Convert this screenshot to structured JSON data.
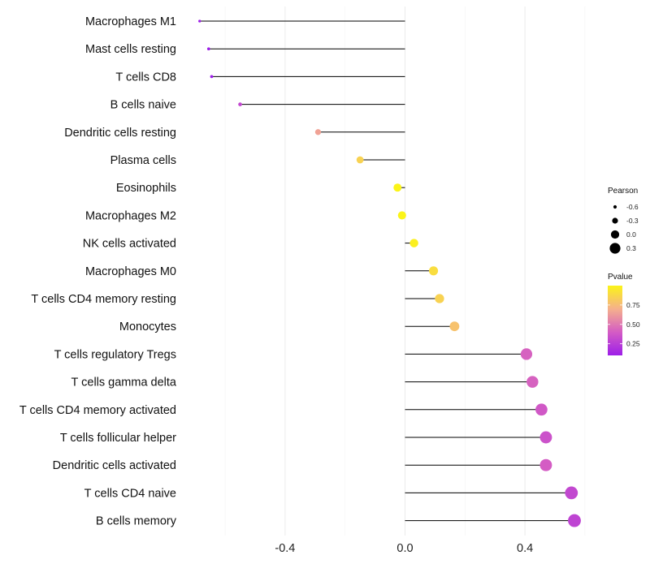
{
  "chart_data": {
    "type": "lollipop",
    "title": "",
    "xlabel": "",
    "ylabel": "",
    "xlim": [
      -0.68,
      0.62
    ],
    "x_ticks": [
      -0.4,
      0.0,
      0.4
    ],
    "x_tick_labels": [
      "-0.4",
      "0.0",
      "0.4"
    ],
    "grid": true,
    "categories": [
      "Macrophages M1",
      "Mast cells resting",
      "T cells CD8",
      "B cells naive",
      "Dendritic cells resting",
      "Plasma cells",
      "Eosinophils",
      "Macrophages M2",
      "NK cells activated",
      "Macrophages M0",
      "T cells CD4 memory resting",
      "Monocytes",
      "T cells regulatory  Tregs ",
      "T cells gamma delta",
      "T cells CD4 memory activated",
      "T cells follicular helper",
      "Dendritic cells activated",
      "T cells CD4 naive",
      "B cells memory"
    ],
    "pearson": [
      -0.685,
      -0.655,
      -0.645,
      -0.55,
      -0.29,
      -0.15,
      -0.025,
      -0.01,
      0.03,
      0.095,
      0.115,
      0.165,
      0.405,
      0.425,
      0.455,
      0.47,
      0.47,
      0.555,
      0.565
    ],
    "pvalue": [
      0.05,
      0.06,
      0.07,
      0.3,
      0.65,
      0.85,
      1.0,
      1.0,
      0.98,
      0.9,
      0.85,
      0.78,
      0.42,
      0.42,
      0.38,
      0.35,
      0.4,
      0.3,
      0.28
    ],
    "legend_size": {
      "title": "Pearson",
      "labels": [
        "-0.6",
        "-0.3",
        "0.0",
        "0.3"
      ],
      "values": [
        -0.6,
        -0.3,
        0.0,
        0.3
      ]
    },
    "legend_color": {
      "title": "Pvalue",
      "labels": [
        "0.75",
        "0.50",
        "0.25"
      ],
      "values": [
        0.75,
        0.5,
        0.25
      ],
      "range": [
        0.1,
        1.0
      ],
      "colors": [
        "#9d1fe8",
        "#d45cc4",
        "#f5b08c",
        "#fbf418"
      ]
    },
    "segment_color": "#000000",
    "grid_color": "#ebebeb",
    "legend_position": "right"
  }
}
